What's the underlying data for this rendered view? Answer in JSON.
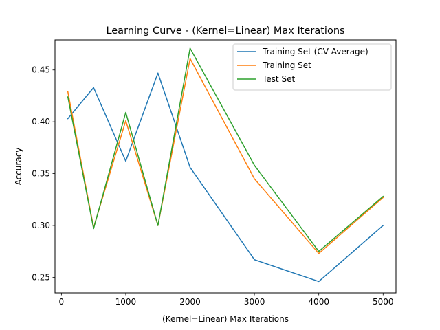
{
  "chart_data": {
    "type": "line",
    "title": "Learning Curve - (Kernel=Linear) Max Iterations",
    "xlabel": "(Kernel=Linear) Max Iterations",
    "ylabel": "Accuracy",
    "x": [
      100,
      500,
      1000,
      1500,
      2000,
      3000,
      4000,
      5000
    ],
    "xlim": [
      -100,
      5200
    ],
    "ylim": [
      0.235,
      0.479
    ],
    "xticks": [
      0,
      1000,
      2000,
      3000,
      4000,
      5000
    ],
    "xtick_labels": [
      "0",
      "1000",
      "2000",
      "3000",
      "4000",
      "5000"
    ],
    "yticks": [
      0.25,
      0.3,
      0.35,
      0.4,
      0.45
    ],
    "ytick_labels": [
      "0.25",
      "0.30",
      "0.35",
      "0.40",
      "0.45"
    ],
    "grid": false,
    "legend_position": "top-right",
    "series": [
      {
        "name": "Training Set (CV Average)",
        "color": "#1f77b4",
        "values": [
          0.403,
          0.433,
          0.362,
          0.447,
          0.356,
          0.267,
          0.246,
          0.3
        ]
      },
      {
        "name": "Training Set",
        "color": "#ff7f0e",
        "values": [
          0.429,
          0.298,
          0.401,
          0.3,
          0.461,
          0.345,
          0.273,
          0.327
        ]
      },
      {
        "name": "Test Set",
        "color": "#2ca02c",
        "values": [
          0.424,
          0.297,
          0.409,
          0.3,
          0.471,
          0.358,
          0.275,
          0.328
        ]
      }
    ]
  }
}
